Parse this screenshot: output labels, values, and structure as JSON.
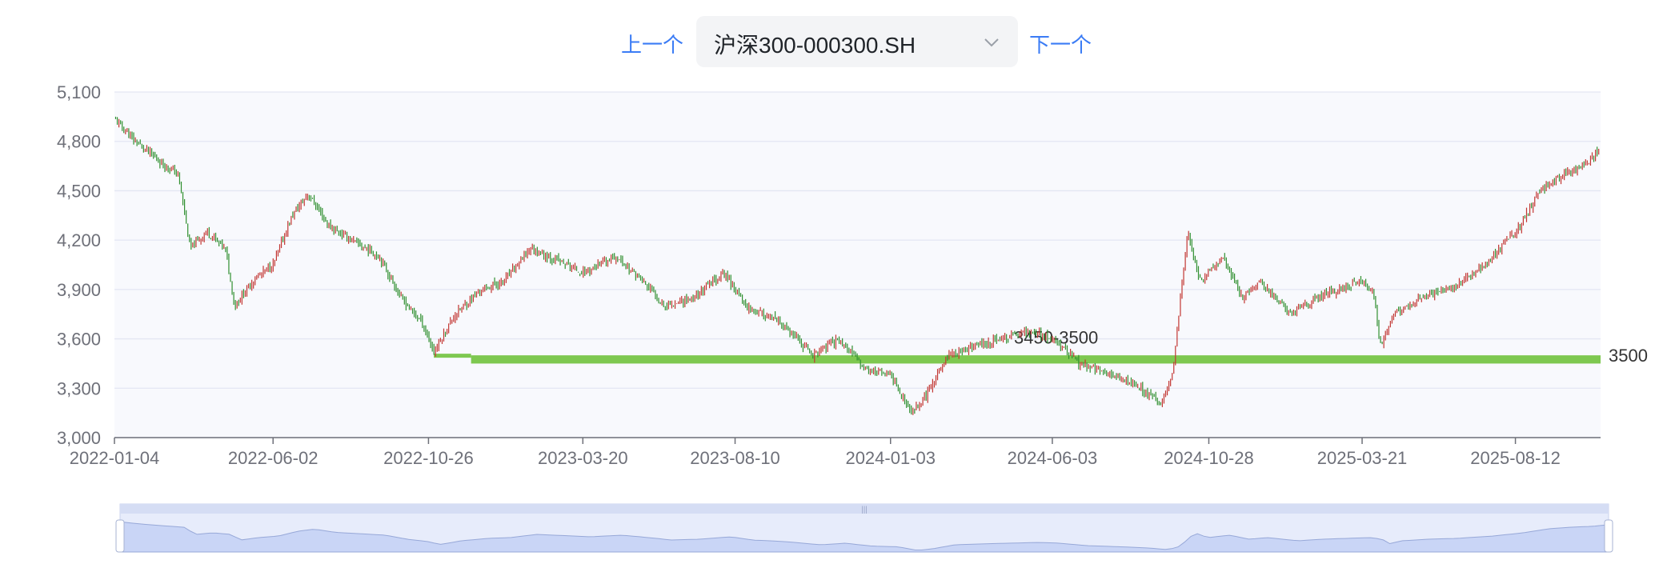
{
  "nav": {
    "prev_label": "上一个",
    "next_label": "下一个",
    "selected_symbol": "沪深300-000300.SH"
  },
  "icons": {
    "dropdown": "chevron-down-icon"
  },
  "colors": {
    "accent": "#3b7cf5",
    "up": "#c23531",
    "down": "#2f8f2f",
    "band": "#7ec850",
    "grid": "#e3e6f3",
    "plot_bg": "#f8f9fd"
  },
  "chart_data": {
    "type": "candlestick",
    "ylim": [
      3000,
      5100
    ],
    "yticks": [
      3000,
      3300,
      3600,
      3900,
      4200,
      4500,
      4800,
      5100
    ],
    "ytick_labels": [
      "3,000",
      "3,300",
      "3,600",
      "3,900",
      "4,200",
      "4,500",
      "4,800",
      "5,100"
    ],
    "x_range": [
      "2022-01-04",
      "2025-10-31"
    ],
    "xtick_labels": [
      "2022-01-04",
      "2022-06-02",
      "2022-10-26",
      "2023-03-20",
      "2023-08-10",
      "2024-01-03",
      "2024-06-03",
      "2024-10-28",
      "2025-03-21",
      "2025-08-12"
    ],
    "close_path": [
      [
        "2022-01-04",
        4940
      ],
      [
        "2022-01-20",
        4820
      ],
      [
        "2022-02-15",
        4680
      ],
      [
        "2022-03-05",
        4600
      ],
      [
        "2022-03-16",
        4150
      ],
      [
        "2022-04-01",
        4250
      ],
      [
        "2022-04-18",
        4150
      ],
      [
        "2022-04-27",
        3800
      ],
      [
        "2022-05-15",
        3960
      ],
      [
        "2022-06-02",
        4050
      ],
      [
        "2022-06-20",
        4350
      ],
      [
        "2022-07-05",
        4480
      ],
      [
        "2022-07-25",
        4280
      ],
      [
        "2022-08-20",
        4180
      ],
      [
        "2022-09-10",
        4100
      ],
      [
        "2022-09-30",
        3850
      ],
      [
        "2022-10-20",
        3700
      ],
      [
        "2022-10-31",
        3520
      ],
      [
        "2022-11-20",
        3750
      ],
      [
        "2022-12-15",
        3900
      ],
      [
        "2023-01-05",
        3950
      ],
      [
        "2023-01-30",
        4150
      ],
      [
        "2023-02-15",
        4100
      ],
      [
        "2023-03-05",
        4050
      ],
      [
        "2023-03-20",
        4000
      ],
      [
        "2023-04-20",
        4100
      ],
      [
        "2023-05-15",
        3950
      ],
      [
        "2023-06-05",
        3800
      ],
      [
        "2023-07-01",
        3850
      ],
      [
        "2023-07-31",
        4000
      ],
      [
        "2023-08-20",
        3800
      ],
      [
        "2023-09-20",
        3700
      ],
      [
        "2023-10-23",
        3500
      ],
      [
        "2023-11-15",
        3600
      ],
      [
        "2023-12-10",
        3420
      ],
      [
        "2024-01-03",
        3380
      ],
      [
        "2024-01-22",
        3150
      ],
      [
        "2024-02-05",
        3250
      ],
      [
        "2024-02-26",
        3500
      ],
      [
        "2024-03-20",
        3550
      ],
      [
        "2024-04-15",
        3600
      ],
      [
        "2024-05-15",
        3650
      ],
      [
        "2024-06-03",
        3600
      ],
      [
        "2024-06-28",
        3450
      ],
      [
        "2024-07-20",
        3400
      ],
      [
        "2024-08-10",
        3350
      ],
      [
        "2024-08-25",
        3300
      ],
      [
        "2024-09-13",
        3200
      ],
      [
        "2024-09-24",
        3400
      ],
      [
        "2024-10-08",
        4250
      ],
      [
        "2024-10-20",
        3950
      ],
      [
        "2024-11-10",
        4100
      ],
      [
        "2024-11-28",
        3850
      ],
      [
        "2024-12-15",
        3950
      ],
      [
        "2025-01-13",
        3750
      ],
      [
        "2025-02-05",
        3850
      ],
      [
        "2025-03-21",
        3950
      ],
      [
        "2025-04-02",
        3850
      ],
      [
        "2025-04-07",
        3550
      ],
      [
        "2025-04-20",
        3750
      ],
      [
        "2025-05-15",
        3850
      ],
      [
        "2025-06-10",
        3900
      ],
      [
        "2025-07-15",
        4050
      ],
      [
        "2025-08-12",
        4250
      ],
      [
        "2025-09-05",
        4500
      ],
      [
        "2025-09-25",
        4600
      ],
      [
        "2025-10-15",
        4650
      ],
      [
        "2025-10-31",
        4750
      ]
    ],
    "band": {
      "label": "3450-3500",
      "low": 3450,
      "high": 3500,
      "right_label": "3500",
      "start": "2022-10-31",
      "thick_from": "2022-12-05"
    },
    "dataZoom": {
      "start": 0,
      "end": 100
    }
  }
}
